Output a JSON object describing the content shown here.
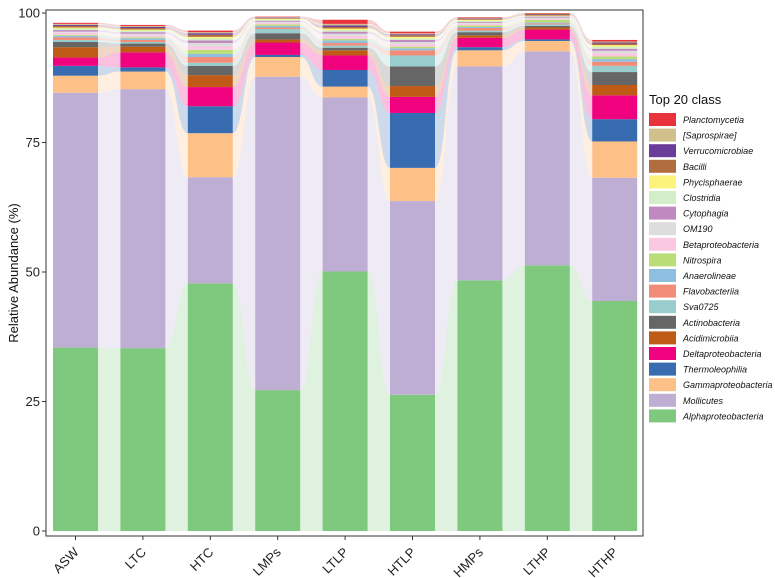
{
  "chart_data": {
    "type": "bar",
    "stacked": true,
    "title": "",
    "xlabel": "",
    "ylabel": "Relative Abundance (%)",
    "ylim": [
      0,
      100
    ],
    "yticks": [
      0,
      25,
      50,
      75,
      100
    ],
    "legend_title": "Top 20 class",
    "legend_position": "right",
    "categories": [
      "ASW",
      "LTC",
      "HTC",
      "LMPs",
      "LTLP",
      "HTLP",
      "HMPs",
      "LTHP",
      "HTHP"
    ],
    "series": [
      {
        "name": "Alphaproteobacteria",
        "color": "#7fc97f",
        "values": [
          35.4,
          35.3,
          47.8,
          27.2,
          50.1,
          26.3,
          48.4,
          51.3,
          44.4
        ]
      },
      {
        "name": "Mollicutes",
        "color": "#beaed4",
        "values": [
          49.2,
          50.0,
          20.5,
          60.5,
          33.6,
          37.4,
          41.3,
          41.3,
          23.8
        ]
      },
      {
        "name": "Gammaproteobacteria",
        "color": "#fdc086",
        "values": [
          3.3,
          3.4,
          8.5,
          3.8,
          2.1,
          6.4,
          3.1,
          2.0,
          7.0
        ]
      },
      {
        "name": "Thermoleophilia",
        "color": "#386cb0",
        "values": [
          1.9,
          0.8,
          5.2,
          0.4,
          3.2,
          10.6,
          0.6,
          0.3,
          4.3
        ]
      },
      {
        "name": "Deltaproteobacteria",
        "color": "#f0027f",
        "values": [
          1.6,
          2.9,
          3.7,
          2.4,
          2.8,
          3.1,
          1.8,
          1.9,
          4.6
        ]
      },
      {
        "name": "Acidimicrobiia",
        "color": "#bf5b17",
        "values": [
          2.0,
          1.1,
          2.3,
          0.6,
          1.0,
          2.1,
          0.5,
          0.4,
          2.0
        ]
      },
      {
        "name": "Actinobacteria",
        "color": "#666666",
        "values": [
          1.0,
          0.6,
          1.8,
          1.2,
          0.5,
          3.8,
          0.6,
          0.3,
          2.5
        ]
      },
      {
        "name": "Sva0725",
        "color": "#99cccc",
        "values": [
          0.4,
          0.3,
          0.6,
          0.8,
          0.4,
          2.1,
          0.3,
          0.3,
          1.2
        ]
      },
      {
        "name": "Flavobacteriia",
        "color": "#f08c78",
        "values": [
          0.5,
          0.4,
          1.1,
          0.3,
          0.5,
          1.0,
          0.5,
          0.2,
          0.8
        ]
      },
      {
        "name": "Anaerolineae",
        "color": "#8fbfe0",
        "values": [
          0.3,
          0.3,
          0.6,
          0.3,
          0.5,
          0.4,
          0.2,
          0.2,
          0.5
        ]
      },
      {
        "name": "Nitrospira",
        "color": "#bbdd77",
        "values": [
          0.2,
          0.2,
          0.8,
          0.3,
          0.3,
          0.3,
          0.3,
          0.5,
          0.5
        ]
      },
      {
        "name": "Betaproteobacteria",
        "color": "#fac8e1",
        "values": [
          0.4,
          0.4,
          0.7,
          0.3,
          0.6,
          0.5,
          0.3,
          0.2,
          0.6
        ]
      },
      {
        "name": "OM190",
        "color": "#dddddd",
        "values": [
          0.2,
          0.3,
          0.6,
          0.2,
          0.4,
          0.4,
          0.2,
          0.2,
          0.5
        ]
      },
      {
        "name": "Cytophagia",
        "color": "#bf8ac0",
        "values": [
          0.3,
          0.3,
          0.5,
          0.2,
          0.4,
          0.4,
          0.2,
          0.2,
          0.4
        ]
      },
      {
        "name": "Clostridia",
        "color": "#d2eec8",
        "values": [
          0.3,
          0.3,
          0.4,
          0.2,
          0.3,
          0.3,
          0.2,
          0.1,
          0.4
        ]
      },
      {
        "name": "Phycisphaerae",
        "color": "#fcf47a",
        "values": [
          0.2,
          0.2,
          0.3,
          0.2,
          0.3,
          0.3,
          0.2,
          0.1,
          0.3
        ]
      },
      {
        "name": "Bacilli",
        "color": "#b06e40",
        "values": [
          0.3,
          0.3,
          0.4,
          0.1,
          0.3,
          0.3,
          0.2,
          0.2,
          0.3
        ]
      },
      {
        "name": "Verrucomicrobiae",
        "color": "#6a3d9a",
        "values": [
          0.2,
          0.2,
          0.3,
          0.1,
          0.3,
          0.2,
          0.1,
          0.1,
          0.2
        ]
      },
      {
        "name": "[Saprospirae]",
        "color": "#d2c08c",
        "values": [
          0.2,
          0.2,
          0.2,
          0.1,
          0.3,
          0.2,
          0.1,
          0.1,
          0.2
        ]
      },
      {
        "name": "Planctomycetia",
        "color": "#e8323c",
        "values": [
          0.2,
          0.2,
          0.3,
          0.1,
          0.8,
          0.3,
          0.1,
          0.1,
          0.3
        ]
      }
    ]
  }
}
